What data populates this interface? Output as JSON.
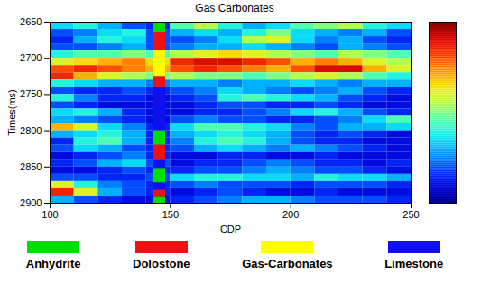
{
  "chart_data": {
    "type": "heatmap",
    "title": "Gas Carbonates",
    "x_label": "CDP",
    "y_label": "Times(ms)",
    "xlim": [
      100,
      250
    ],
    "xticks": [
      100,
      150,
      200,
      250
    ],
    "ylim": [
      2650,
      2900
    ],
    "yticks": [
      2650,
      2700,
      2750,
      2800,
      2850,
      2900
    ],
    "color_range": [
      0,
      1
    ],
    "x_edges": [
      100,
      110,
      120,
      130,
      140,
      150,
      160,
      170,
      180,
      190,
      200,
      210,
      220,
      230,
      240,
      250
    ],
    "y_edges": [
      2650,
      2660,
      2670,
      2680,
      2690,
      2700,
      2710,
      2720,
      2730,
      2740,
      2750,
      2760,
      2770,
      2780,
      2790,
      2800,
      2810,
      2820,
      2830,
      2840,
      2850,
      2860,
      2870,
      2880,
      2890,
      2900
    ],
    "cells": [
      [
        0.35,
        0.4,
        0.3,
        0.2,
        0.15,
        0.45,
        0.55,
        0.4,
        0.3,
        0.35,
        0.45,
        0.5,
        0.55,
        0.4,
        0.35
      ],
      [
        0.2,
        0.25,
        0.35,
        0.4,
        0.2,
        0.3,
        0.35,
        0.3,
        0.4,
        0.5,
        0.35,
        0.3,
        0.25,
        0.3,
        0.2
      ],
      [
        0.15,
        0.3,
        0.4,
        0.35,
        0.2,
        0.2,
        0.25,
        0.35,
        0.55,
        0.6,
        0.35,
        0.25,
        0.3,
        0.2,
        0.15
      ],
      [
        0.2,
        0.2,
        0.25,
        0.3,
        0.2,
        0.25,
        0.3,
        0.3,
        0.35,
        0.3,
        0.25,
        0.2,
        0.3,
        0.25,
        0.2
      ],
      [
        0.4,
        0.45,
        0.45,
        0.5,
        0.45,
        0.55,
        0.6,
        0.65,
        0.6,
        0.55,
        0.5,
        0.45,
        0.55,
        0.5,
        0.45
      ],
      [
        0.6,
        0.65,
        0.7,
        0.75,
        0.65,
        0.85,
        0.9,
        0.9,
        0.85,
        0.8,
        0.7,
        0.75,
        0.7,
        0.6,
        0.55
      ],
      [
        0.8,
        0.85,
        0.8,
        0.75,
        0.7,
        0.8,
        0.85,
        0.8,
        0.75,
        0.7,
        0.8,
        0.9,
        0.9,
        0.7,
        0.6
      ],
      [
        0.85,
        0.7,
        0.6,
        0.55,
        0.5,
        0.55,
        0.5,
        0.5,
        0.45,
        0.5,
        0.55,
        0.6,
        0.55,
        0.45,
        0.4
      ],
      [
        0.4,
        0.35,
        0.3,
        0.3,
        0.25,
        0.3,
        0.3,
        0.25,
        0.3,
        0.3,
        0.35,
        0.3,
        0.25,
        0.3,
        0.3
      ],
      [
        0.2,
        0.15,
        0.15,
        0.2,
        0.15,
        0.2,
        0.25,
        0.35,
        0.3,
        0.25,
        0.2,
        0.25,
        0.3,
        0.2,
        0.15
      ],
      [
        0.4,
        0.25,
        0.15,
        0.15,
        0.1,
        0.15,
        0.2,
        0.4,
        0.45,
        0.4,
        0.35,
        0.3,
        0.2,
        0.15,
        0.1
      ],
      [
        0.2,
        0.15,
        0.1,
        0.1,
        0.1,
        0.1,
        0.15,
        0.2,
        0.2,
        0.15,
        0.15,
        0.2,
        0.15,
        0.1,
        0.1
      ],
      [
        0.35,
        0.4,
        0.3,
        0.15,
        0.1,
        0.1,
        0.15,
        0.15,
        0.2,
        0.25,
        0.35,
        0.4,
        0.3,
        0.2,
        0.15
      ],
      [
        0.3,
        0.25,
        0.2,
        0.15,
        0.1,
        0.2,
        0.25,
        0.2,
        0.2,
        0.15,
        0.15,
        0.2,
        0.25,
        0.35,
        0.45
      ],
      [
        0.7,
        0.6,
        0.35,
        0.25,
        0.15,
        0.35,
        0.45,
        0.45,
        0.4,
        0.35,
        0.25,
        0.2,
        0.3,
        0.3,
        0.35
      ],
      [
        0.3,
        0.35,
        0.4,
        0.3,
        0.15,
        0.3,
        0.35,
        0.4,
        0.35,
        0.3,
        0.2,
        0.15,
        0.2,
        0.15,
        0.1
      ],
      [
        0.15,
        0.4,
        0.45,
        0.3,
        0.15,
        0.25,
        0.4,
        0.45,
        0.4,
        0.3,
        0.2,
        0.15,
        0.15,
        0.1,
        0.1
      ],
      [
        0.2,
        0.35,
        0.3,
        0.2,
        0.15,
        0.2,
        0.3,
        0.35,
        0.3,
        0.25,
        0.3,
        0.25,
        0.2,
        0.15,
        0.1
      ],
      [
        0.1,
        0.15,
        0.2,
        0.25,
        0.15,
        0.1,
        0.1,
        0.15,
        0.15,
        0.1,
        0.1,
        0.15,
        0.1,
        0.1,
        0.1
      ],
      [
        0.15,
        0.2,
        0.3,
        0.35,
        0.2,
        0.1,
        0.15,
        0.15,
        0.2,
        0.25,
        0.2,
        0.15,
        0.15,
        0.1,
        0.15
      ],
      [
        0.1,
        0.1,
        0.15,
        0.2,
        0.15,
        0.15,
        0.2,
        0.2,
        0.25,
        0.3,
        0.25,
        0.2,
        0.2,
        0.15,
        0.1
      ],
      [
        0.2,
        0.2,
        0.15,
        0.15,
        0.2,
        0.35,
        0.4,
        0.4,
        0.35,
        0.35,
        0.3,
        0.4,
        0.35,
        0.35,
        0.3
      ],
      [
        0.6,
        0.4,
        0.25,
        0.2,
        0.15,
        0.2,
        0.25,
        0.2,
        0.2,
        0.2,
        0.15,
        0.2,
        0.2,
        0.2,
        0.15
      ],
      [
        0.85,
        0.6,
        0.3,
        0.2,
        0.15,
        0.1,
        0.15,
        0.2,
        0.15,
        0.1,
        0.1,
        0.15,
        0.1,
        0.1,
        0.1
      ],
      [
        0.3,
        0.2,
        0.15,
        0.1,
        0.1,
        0.15,
        0.2,
        0.25,
        0.3,
        0.3,
        0.25,
        0.2,
        0.2,
        0.2,
        0.15
      ]
    ],
    "well_cdp": [
      143,
      148
    ],
    "series": [
      {
        "name": "Anhydrite",
        "color": "#00dd00"
      },
      {
        "name": "Dolostone",
        "color": "#ee1111"
      },
      {
        "name": "Gas-Carbonates",
        "color": "#ffff00"
      },
      {
        "name": "Limestone",
        "color": "#1010ee"
      }
    ],
    "intervals": [
      {
        "lithology": "Anhydrite",
        "from": 2650,
        "to": 2665
      },
      {
        "lithology": "Dolostone",
        "from": 2665,
        "to": 2690
      },
      {
        "lithology": "Gas-Carbonates",
        "from": 2690,
        "to": 2725
      },
      {
        "lithology": "Dolostone",
        "from": 2725,
        "to": 2740
      },
      {
        "lithology": "Limestone",
        "from": 2740,
        "to": 2800
      },
      {
        "lithology": "Anhydrite",
        "from": 2800,
        "to": 2820
      },
      {
        "lithology": "Dolostone",
        "from": 2820,
        "to": 2840
      },
      {
        "lithology": "Limestone",
        "from": 2840,
        "to": 2852
      },
      {
        "lithology": "Anhydrite",
        "from": 2852,
        "to": 2872
      },
      {
        "lithology": "Limestone",
        "from": 2872,
        "to": 2882
      },
      {
        "lithology": "Dolostone",
        "from": 2882,
        "to": 2892
      },
      {
        "lithology": "Anhydrite",
        "from": 2892,
        "to": 2900
      }
    ],
    "legend": "bottom"
  }
}
